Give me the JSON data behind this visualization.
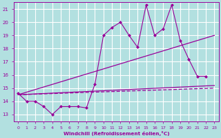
{
  "background_color": "#b2e0e0",
  "grid_color": "#c0d8d8",
  "line_color": "#990099",
  "marker_color": "#990099",
  "xlabel": "Windchill (Refroidissement éolien,°C)",
  "xlim": [
    -0.5,
    23.5
  ],
  "ylim": [
    12.5,
    21.5
  ],
  "yticks": [
    13,
    14,
    15,
    16,
    17,
    18,
    19,
    20,
    21
  ],
  "xticks": [
    0,
    1,
    2,
    3,
    4,
    5,
    6,
    7,
    8,
    9,
    10,
    11,
    12,
    13,
    14,
    15,
    16,
    17,
    18,
    19,
    20,
    21,
    22,
    23
  ],
  "series1_x": [
    0,
    1,
    2,
    3,
    4,
    5,
    6,
    7,
    8,
    9,
    10,
    11,
    12,
    13,
    14,
    15,
    16,
    17,
    18,
    19,
    20,
    21,
    22
  ],
  "series1_y": [
    14.6,
    14.0,
    14.0,
    13.6,
    13.0,
    13.6,
    13.6,
    13.6,
    13.5,
    15.3,
    19.0,
    19.6,
    20.0,
    19.0,
    18.1,
    21.3,
    19.0,
    19.5,
    21.3,
    18.6,
    17.2,
    15.9,
    15.9
  ],
  "line1_x": [
    0,
    23
  ],
  "line1_y": [
    14.5,
    15.2
  ],
  "line2_x": [
    0,
    23
  ],
  "line2_y": [
    14.5,
    19.0
  ],
  "line3_x": [
    0,
    23
  ],
  "line3_y": [
    14.5,
    15.0
  ]
}
